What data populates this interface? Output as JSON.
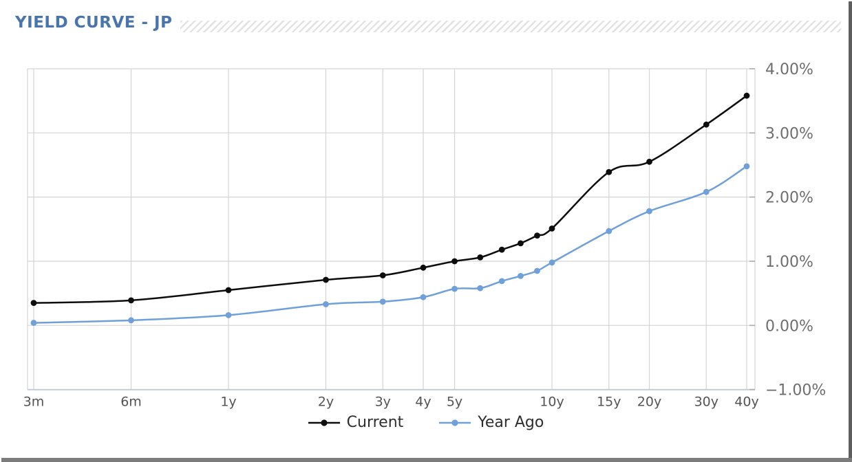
{
  "header": {
    "title": "YIELD CURVE - JP"
  },
  "legend": {
    "items": [
      {
        "label": "Current",
        "color": "#0d0d0d"
      },
      {
        "label": "Year Ago",
        "color": "#6fa0da"
      }
    ]
  },
  "chart_data": {
    "type": "line",
    "title": "YIELD CURVE - JP",
    "x_scale": "log",
    "unit": "%",
    "grid": true,
    "legend_position": "bottom",
    "y_axis_side": "right",
    "xlim_years": [
      0.25,
      40
    ],
    "ylim": [
      -1,
      4
    ],
    "x_maturity_years": [
      0.25,
      0.5,
      1,
      2,
      3,
      4,
      5,
      6,
      7,
      8,
      9,
      10,
      15,
      20,
      30,
      40
    ],
    "x_ticks": [
      {
        "m": 0.25,
        "label": "3m"
      },
      {
        "m": 0.5,
        "label": "6m"
      },
      {
        "m": 1,
        "label": "1y"
      },
      {
        "m": 2,
        "label": "2y"
      },
      {
        "m": 3,
        "label": "3y"
      },
      {
        "m": 4,
        "label": "4y"
      },
      {
        "m": 5,
        "label": "5y"
      },
      {
        "m": 10,
        "label": "10y"
      },
      {
        "m": 15,
        "label": "15y"
      },
      {
        "m": 20,
        "label": "20y"
      },
      {
        "m": 30,
        "label": "30y"
      },
      {
        "m": 40,
        "label": "40y"
      }
    ],
    "y_ticks": [
      {
        "value": 4,
        "label": "4.00%"
      },
      {
        "value": 3,
        "label": "3.00%"
      },
      {
        "value": 2,
        "label": "2.00%"
      },
      {
        "value": 1,
        "label": "1.00%"
      },
      {
        "value": 0,
        "label": "0.00%"
      },
      {
        "value": -1,
        "label": "−1.00%"
      }
    ],
    "series": [
      {
        "name": "Current",
        "color": "#0d0d0d",
        "values": [
          0.35,
          0.39,
          0.55,
          0.71,
          0.78,
          0.9,
          1.0,
          1.06,
          1.18,
          1.28,
          1.4,
          1.51,
          2.39,
          2.55,
          3.13,
          3.58
        ]
      },
      {
        "name": "Year Ago",
        "color": "#6fa0da",
        "values": [
          0.04,
          0.08,
          0.16,
          0.33,
          0.37,
          0.44,
          0.57,
          0.58,
          0.69,
          0.77,
          0.85,
          0.98,
          1.47,
          1.78,
          2.08,
          2.48
        ]
      }
    ]
  },
  "colors": {
    "title": "#4a74ac",
    "gridline": "#d4d4d4",
    "axis_line": "#c3ccd6",
    "y_tick_mark": "#ababab",
    "y_label_text": "#6e6e6e",
    "x_label_text": "#545454",
    "legend_text": "#2e2e2e",
    "hatch_stripe": "#e3e3e3"
  }
}
